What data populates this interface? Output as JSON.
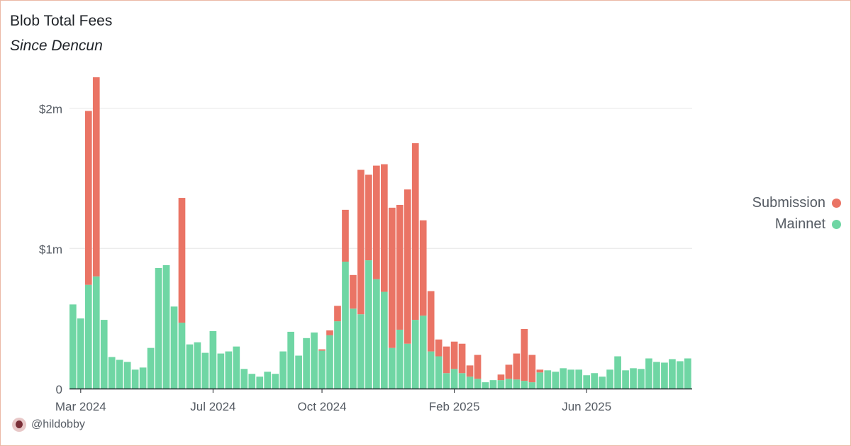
{
  "title": "Blob Total Fees",
  "subtitle": "Since Dencun",
  "footer": {
    "handle": "@hildobby"
  },
  "colors": {
    "submission": "#ea7465",
    "mainnet": "#6fd6a4",
    "grid": "#e6e6e6",
    "axis": "#1f2328",
    "text": "#555b63"
  },
  "legend": [
    {
      "name": "Submission",
      "color": "#ea7465"
    },
    {
      "name": "Mainnet",
      "color": "#6fd6a4"
    }
  ],
  "chart_data": {
    "type": "bar",
    "stacked": true,
    "x_start": "2024-03-11",
    "interval": "weekly",
    "ylim": [
      0,
      2220000
    ],
    "y_ticks": [
      0,
      1000000,
      2000000
    ],
    "y_tick_labels": [
      "0",
      "$1m",
      "$2m"
    ],
    "x_tick_labels": [
      {
        "label": "Mar 2024",
        "index": 1
      },
      {
        "label": "Jul 2024",
        "index": 18
      },
      {
        "label": "Oct 2024",
        "index": 32
      },
      {
        "label": "Feb 2025",
        "index": 49
      },
      {
        "label": "Jun 2025",
        "index": 66
      }
    ],
    "grid": true,
    "legend_position": "right",
    "series": [
      {
        "name": "Mainnet",
        "values": [
          600000,
          500000,
          740000,
          800000,
          490000,
          225000,
          205000,
          190000,
          135000,
          150000,
          290000,
          860000,
          880000,
          585000,
          470000,
          315000,
          330000,
          255000,
          410000,
          250000,
          265000,
          300000,
          140000,
          105000,
          85000,
          120000,
          105000,
          265000,
          405000,
          235000,
          360000,
          400000,
          270000,
          380000,
          480000,
          905000,
          570000,
          530000,
          915000,
          780000,
          690000,
          290000,
          420000,
          320000,
          490000,
          520000,
          265000,
          230000,
          110000,
          140000,
          110000,
          85000,
          70000,
          45000,
          60000,
          60000,
          70000,
          65000,
          55000,
          45000,
          115000,
          130000,
          120000,
          145000,
          135000,
          135000,
          95000,
          110000,
          85000,
          135000,
          230000,
          130000,
          145000,
          140000,
          215000,
          190000,
          185000,
          210000,
          195000,
          215000
        ]
      },
      {
        "name": "Submission",
        "values": [
          0,
          0,
          1240000,
          1420000,
          0,
          0,
          0,
          0,
          0,
          0,
          0,
          0,
          0,
          0,
          890000,
          0,
          0,
          0,
          0,
          0,
          0,
          0,
          0,
          0,
          0,
          0,
          0,
          0,
          0,
          0,
          0,
          0,
          10000,
          35000,
          110000,
          370000,
          240000,
          1030000,
          610000,
          810000,
          910000,
          1000000,
          890000,
          1100000,
          1260000,
          680000,
          430000,
          120000,
          190000,
          195000,
          210000,
          80000,
          170000,
          0,
          0,
          40000,
          100000,
          185000,
          370000,
          195000,
          20000,
          0,
          0,
          0,
          0,
          0,
          0,
          0,
          0,
          0,
          0,
          0,
          0,
          0,
          0,
          0,
          0,
          0,
          0,
          0
        ]
      }
    ]
  }
}
